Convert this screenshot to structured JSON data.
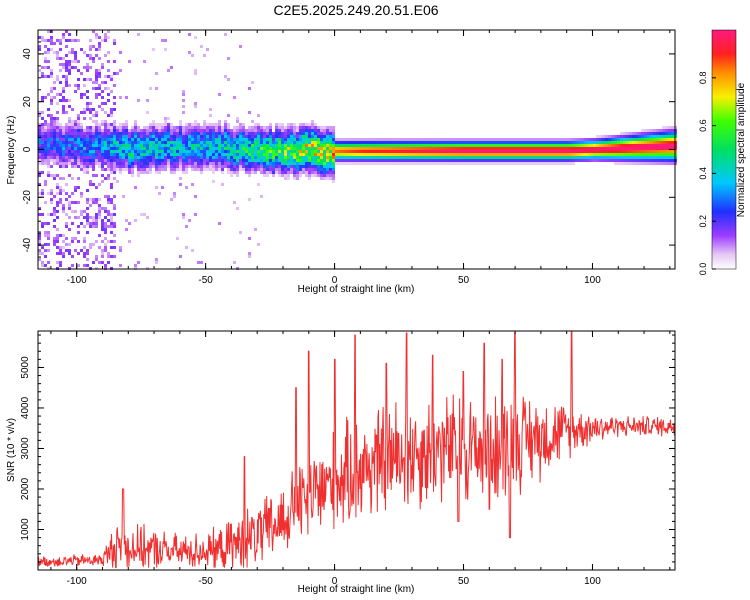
{
  "title": "C2E5.2025.249.20.51.E06",
  "colors": {
    "snr_line": "#f03030",
    "frame": "#000000",
    "background": "#ffffff"
  },
  "chart_data": [
    {
      "type": "heatmap",
      "name": "spectrogram",
      "xlabel": "Height of straight line (km)",
      "ylabel": "Frequency (Hz)",
      "xlim": [
        -115,
        132
      ],
      "ylim": [
        -50,
        50
      ],
      "xticks": [
        -100,
        -50,
        0,
        50,
        100
      ],
      "yticks": [
        -40,
        -20,
        0,
        20,
        40
      ],
      "xtick_labels": [
        "-100",
        "-50",
        "0",
        "50",
        "100"
      ],
      "ytick_labels": [
        "-40",
        "-20",
        "0",
        "20",
        "40"
      ],
      "colorbar": {
        "label": "Normalized spectral amplitude",
        "range": [
          0,
          1
        ],
        "ticks": [
          0.0,
          0.2,
          0.4,
          0.6,
          0.8
        ],
        "tick_labels": [
          "0.0",
          "0.2",
          "0.4",
          "0.6",
          "0.8"
        ],
        "colormap": "rainbow (white-violet-blue-cyan-green-yellow-orange-red-magenta)"
      },
      "description_points": {
        "noise_region_x": [
          -115,
          -85
        ],
        "central_band": [
          {
            "x": -110,
            "f": 3,
            "amp": 0.3
          },
          {
            "x": -95,
            "f": 2,
            "amp": 0.35
          },
          {
            "x": -80,
            "f": 1,
            "amp": 0.5
          },
          {
            "x": -60,
            "f": 2,
            "amp": 0.45
          },
          {
            "x": -40,
            "f": 1,
            "amp": 0.5
          },
          {
            "x": -25,
            "f": 0,
            "amp": 0.6
          },
          {
            "x": -10,
            "f": 0,
            "amp": 0.8
          },
          {
            "x": 10,
            "f": 0,
            "amp": 0.9
          },
          {
            "x": 50,
            "f": 0,
            "amp": 1.0
          },
          {
            "x": 90,
            "f": 0,
            "amp": 1.0
          },
          {
            "x": 130,
            "f": 2,
            "amp": 1.0
          }
        ]
      }
    },
    {
      "type": "line",
      "name": "snr",
      "xlabel": "Height of straight line (km)",
      "ylabel": "SNR (10 * v/v)",
      "xlim": [
        -115,
        132
      ],
      "ylim": [
        0,
        5900
      ],
      "xticks": [
        -100,
        -50,
        0,
        50,
        100
      ],
      "yticks": [
        1000,
        2000,
        3000,
        4000,
        5000
      ],
      "xtick_labels": [
        "-100",
        "-50",
        "0",
        "50",
        "100"
      ],
      "ytick_labels": [
        "1000",
        "2000",
        "3000",
        "4000",
        "5000"
      ],
      "envelope_points": [
        {
          "x": -115,
          "base": 200,
          "amp": 150
        },
        {
          "x": -90,
          "base": 250,
          "amp": 200
        },
        {
          "x": -85,
          "base": 600,
          "amp": 700
        },
        {
          "x": -70,
          "base": 500,
          "amp": 600
        },
        {
          "x": -60,
          "base": 450,
          "amp": 500
        },
        {
          "x": -45,
          "base": 500,
          "amp": 600
        },
        {
          "x": -35,
          "base": 700,
          "amp": 900
        },
        {
          "x": -25,
          "base": 1000,
          "amp": 1000
        },
        {
          "x": -15,
          "base": 1500,
          "amp": 1200
        },
        {
          "x": -5,
          "base": 2000,
          "amp": 1400
        },
        {
          "x": 10,
          "base": 2500,
          "amp": 1600
        },
        {
          "x": 25,
          "base": 2800,
          "amp": 1700
        },
        {
          "x": 40,
          "base": 3000,
          "amp": 1600
        },
        {
          "x": 60,
          "base": 3000,
          "amp": 1700
        },
        {
          "x": 80,
          "base": 3300,
          "amp": 1200
        },
        {
          "x": 95,
          "base": 3500,
          "amp": 600
        },
        {
          "x": 110,
          "base": 3550,
          "amp": 300
        },
        {
          "x": 132,
          "base": 3550,
          "amp": 300
        }
      ],
      "spikes": [
        {
          "x": -82,
          "y": 2000
        },
        {
          "x": -35,
          "y": 2800
        },
        {
          "x": -15,
          "y": 4500
        },
        {
          "x": -10,
          "y": 5400
        },
        {
          "x": 0,
          "y": 5200
        },
        {
          "x": 8,
          "y": 5800
        },
        {
          "x": 20,
          "y": 5100
        },
        {
          "x": 28,
          "y": 5850
        },
        {
          "x": 38,
          "y": 5300
        },
        {
          "x": 50,
          "y": 4900
        },
        {
          "x": 58,
          "y": 5600
        },
        {
          "x": 65,
          "y": 5200
        },
        {
          "x": 70,
          "y": 5850
        },
        {
          "x": 92,
          "y": 5900
        }
      ],
      "dips": [
        {
          "x": 48,
          "y": 1200
        },
        {
          "x": 60,
          "y": 1500
        },
        {
          "x": 68,
          "y": 800
        }
      ]
    }
  ]
}
